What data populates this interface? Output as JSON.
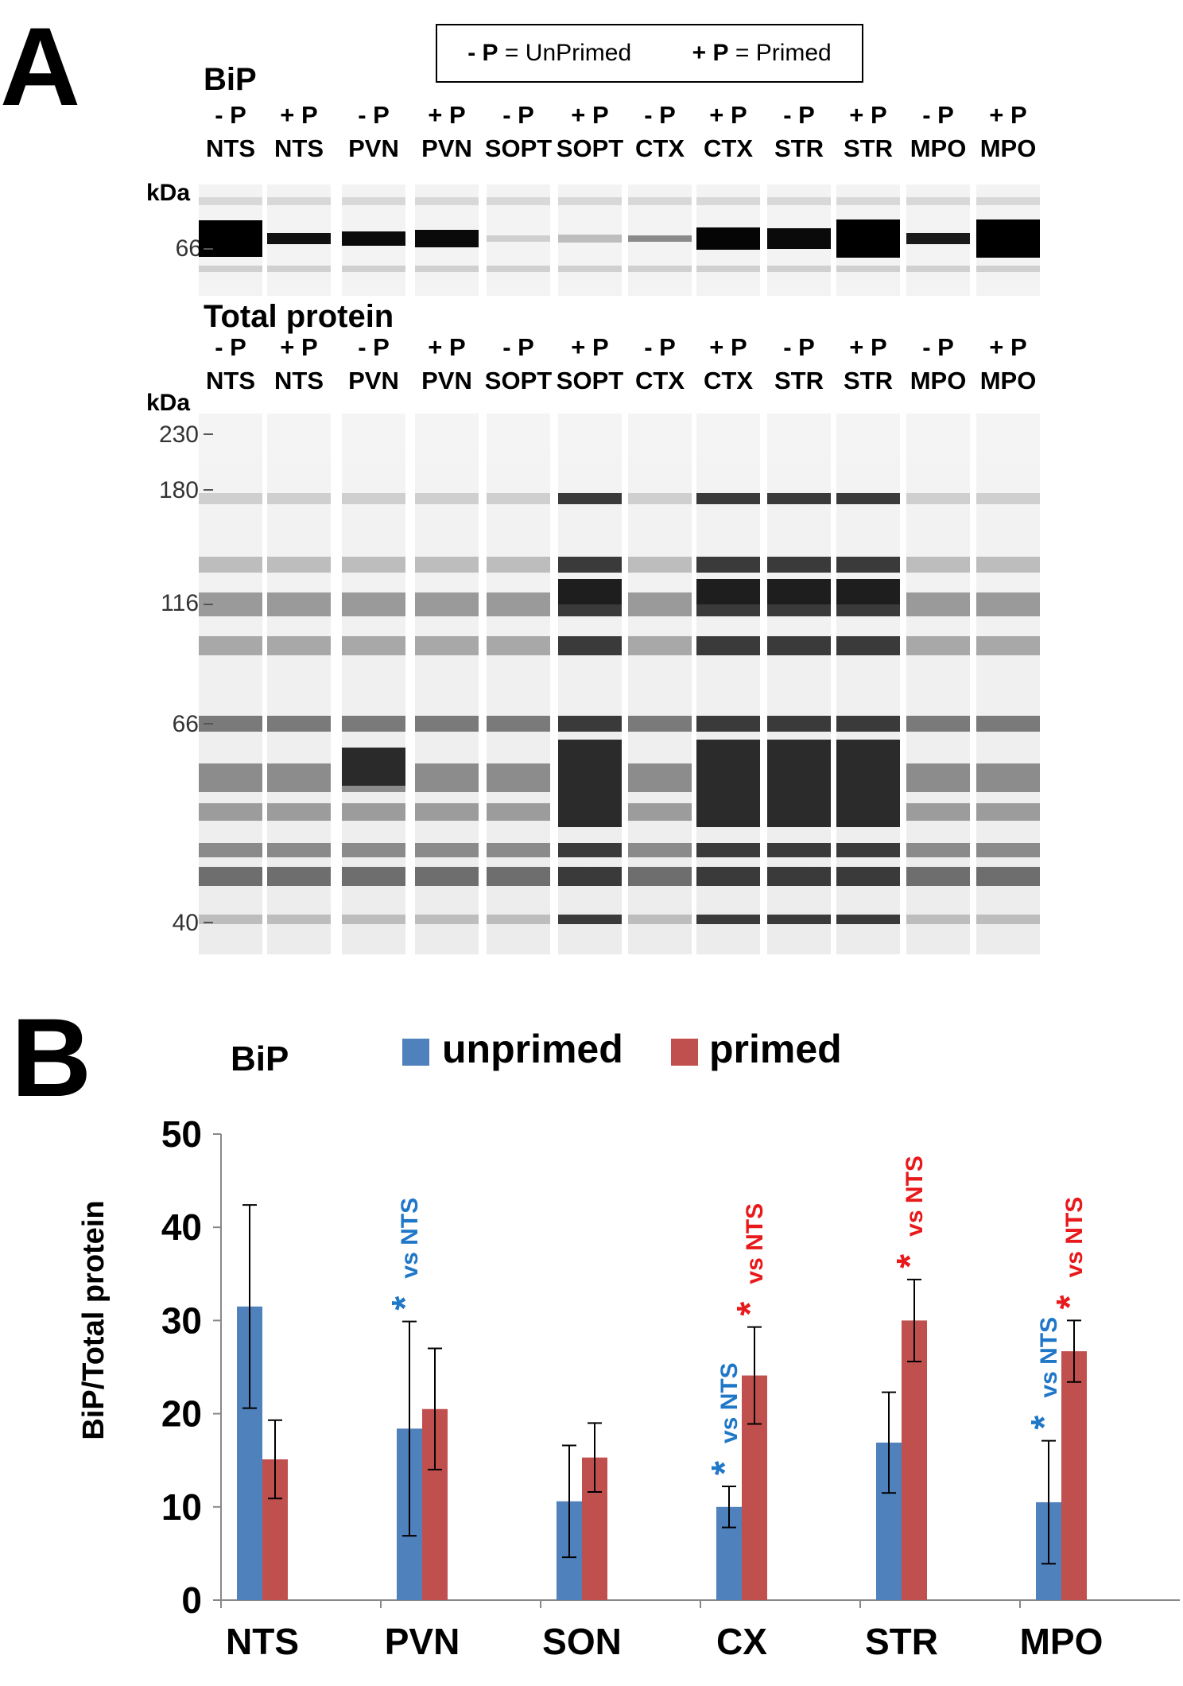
{
  "panel_a": {
    "letter": "A",
    "legend": {
      "unprimed_symbol": "- P",
      "unprimed_text": "= UnPrimed",
      "primed_symbol": "+ P",
      "primed_text": "= Primed"
    },
    "bip_title": "BiP",
    "total_title": "Total protein",
    "kda_label": "kDa",
    "lanes": [
      {
        "p": "- P",
        "region": "NTS"
      },
      {
        "p": "+ P",
        "region": "NTS"
      },
      {
        "p": "- P",
        "region": "PVN"
      },
      {
        "p": "+ P",
        "region": "PVN"
      },
      {
        "p": "- P",
        "region": "SOPT"
      },
      {
        "p": "+ P",
        "region": "SOPT"
      },
      {
        "p": "- P",
        "region": "CTX"
      },
      {
        "p": "+ P",
        "region": "CTX"
      },
      {
        "p": "- P",
        "region": "STR"
      },
      {
        "p": "+ P",
        "region": "STR"
      },
      {
        "p": "- P",
        "region": "MPO"
      },
      {
        "p": "+ P",
        "region": "MPO"
      }
    ],
    "bip_markers": [
      "66"
    ],
    "total_markers": [
      "230",
      "180",
      "116",
      "66",
      "40"
    ]
  },
  "panel_b": {
    "letter": "B"
  },
  "colors": {
    "unprimed": "#4F81BD",
    "primed": "#C0504D",
    "sig_unprimed": "#1F77C8",
    "sig_primed": "#E8191B"
  },
  "chart_data": {
    "type": "bar",
    "title": "BiP",
    "ylabel": "BiP/Total protein",
    "xlabel": "",
    "ylim": [
      0,
      50
    ],
    "yticks": [
      "0",
      "10",
      "20",
      "30",
      "40",
      "50"
    ],
    "categories": [
      "NTS",
      "PVN",
      "SON",
      "CX",
      "STR",
      "MPO"
    ],
    "series": [
      {
        "name": "unprimed",
        "values": [
          31.5,
          18.4,
          10.6,
          10.0,
          16.9,
          10.5
        ],
        "errors": [
          10.9,
          11.5,
          6.0,
          2.2,
          5.4,
          6.6
        ]
      },
      {
        "name": "primed",
        "values": [
          15.1,
          20.5,
          15.3,
          24.1,
          30.0,
          26.7
        ],
        "errors": [
          4.2,
          6.5,
          3.7,
          5.2,
          4.4,
          3.3
        ]
      }
    ],
    "annotations": [
      {
        "category": "PVN",
        "series": "unprimed",
        "star": "*",
        "text": "vs NTS"
      },
      {
        "category": "CX",
        "series": "unprimed",
        "star": "*",
        "text": "vs NTS"
      },
      {
        "category": "CX",
        "series": "primed",
        "star": "*",
        "text": "vs NTS"
      },
      {
        "category": "STR",
        "series": "primed",
        "star": "*",
        "text": "vs NTS"
      },
      {
        "category": "MPO",
        "series": "unprimed",
        "star": "*",
        "text": "vs NTS"
      },
      {
        "category": "MPO",
        "series": "primed",
        "star": "*",
        "text": "vs NTS"
      }
    ]
  }
}
